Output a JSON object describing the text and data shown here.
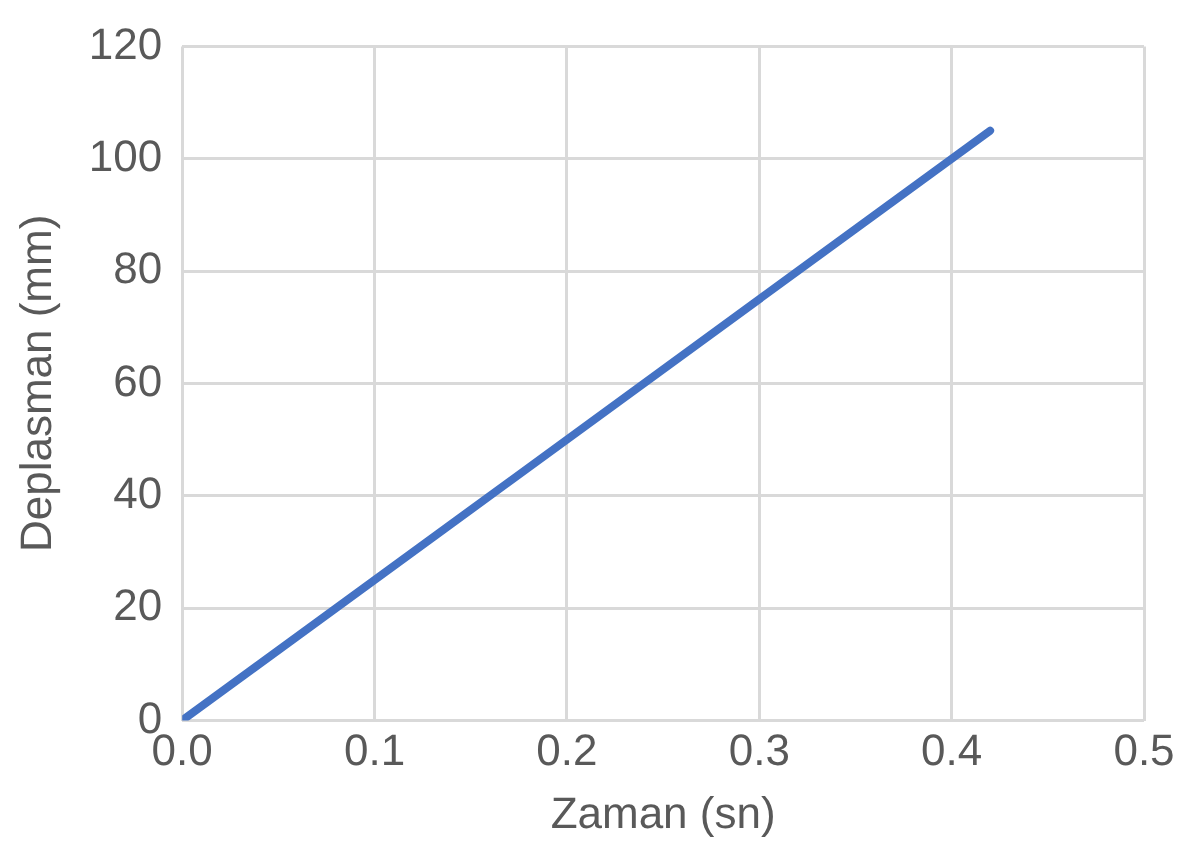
{
  "chart_data": {
    "type": "line",
    "xlabel": "Zaman (sn)",
    "ylabel": "Deplasman (mm)",
    "x": [
      0,
      0.42
    ],
    "series": [
      {
        "color": "#4472c4",
        "values": [
          0,
          105
        ]
      }
    ],
    "xlim": [
      0,
      0.5
    ],
    "xticks": [
      {
        "value": 0,
        "label": "0.0"
      },
      0.1,
      0.2,
      0.3,
      0.4,
      0.5
    ],
    "ylim": [
      0,
      120
    ],
    "yticks": [
      0,
      20,
      40,
      60,
      80,
      100,
      120
    ],
    "grid": true,
    "legend": false,
    "marker": "none",
    "line_style": "solid"
  }
}
